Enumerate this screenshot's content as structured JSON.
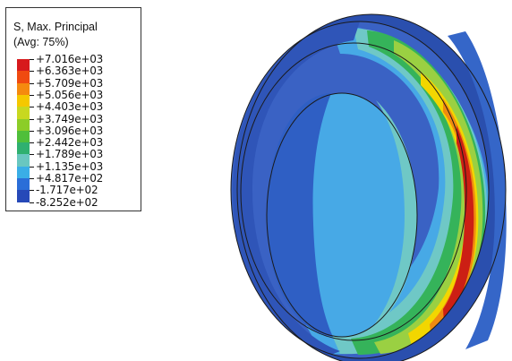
{
  "legend": {
    "title_line1": "S, Max. Principal",
    "title_line2": "(Avg: 75%)",
    "labels": [
      "+7.016e+03",
      "+6.363e+03",
      "+5.709e+03",
      "+5.056e+03",
      "+4.403e+03",
      "+3.749e+03",
      "+3.096e+03",
      "+2.442e+03",
      "+1.789e+03",
      "+1.135e+03",
      "+4.817e+02",
      "-1.717e+02",
      "-8.252e+02"
    ],
    "colors": [
      "#d7191c",
      "#f04a10",
      "#f58a0f",
      "#f5c800",
      "#c8d820",
      "#8ccd28",
      "#4fbf3a",
      "#2fb070",
      "#69c7c0",
      "#3aaee6",
      "#2a6ed8",
      "#2649b8"
    ]
  },
  "model_colors": {
    "dark_blue": "#2f55b8",
    "mid_blue": "#3a6fd0",
    "light_blue": "#47a9e6",
    "cyan": "#6fc8c6",
    "green": "#35b35a",
    "light_green": "#9ad042",
    "yellow": "#f2d600",
    "orange": "#f08a10",
    "red": "#cc1f14"
  }
}
